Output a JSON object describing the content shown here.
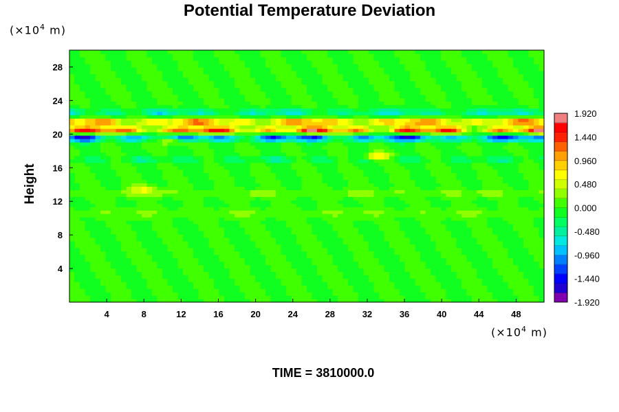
{
  "chart_data": {
    "type": "heatmap",
    "title": "Potential Temperature Deviation",
    "ylabel": "Height",
    "y_unit_prefix": "(×10",
    "y_unit_exp": "4",
    "y_unit_suffix": " m)",
    "x_unit_prefix": "(×10",
    "x_unit_exp": "4",
    "x_unit_suffix": " m)",
    "xlim": [
      0,
      51
    ],
    "ylim": [
      0,
      30
    ],
    "x_ticks": [
      4,
      8,
      12,
      16,
      20,
      24,
      28,
      32,
      36,
      40,
      44,
      48
    ],
    "y_ticks": [
      4,
      8,
      12,
      16,
      20,
      24,
      28
    ],
    "colorbar": {
      "labels": [
        "1.920",
        "1.440",
        "0.960",
        "0.480",
        "0.000",
        "-0.480",
        "-0.960",
        "-1.440",
        "-1.920"
      ],
      "min": -1.92,
      "max": 1.92,
      "colors": [
        "#8000b0",
        "#2000d0",
        "#0000ff",
        "#0040ff",
        "#0080ff",
        "#00c0ff",
        "#00e8e0",
        "#00f0a0",
        "#00ff60",
        "#10ff20",
        "#40ff00",
        "#90ff00",
        "#d0ff00",
        "#ffff00",
        "#ffd000",
        "#ffa000",
        "#ff6000",
        "#ff2000",
        "#ff0000",
        "#f08080"
      ]
    },
    "field_features": [
      {
        "kind": "band",
        "y": 20.5,
        "amplitude": 1.9
      },
      {
        "kind": "band",
        "y": 21.5,
        "amplitude": 1.5
      },
      {
        "kind": "band",
        "y": 19.6,
        "amplitude": -1.7
      },
      {
        "kind": "band",
        "y": 22.6,
        "amplitude": -0.8
      },
      {
        "kind": "band",
        "y": 17.0,
        "amplitude": -0.4
      },
      {
        "kind": "band",
        "y": 13.0,
        "amplitude": 0.35
      },
      {
        "kind": "band",
        "y": 10.6,
        "amplitude": 0.3
      },
      {
        "kind": "blob",
        "x": 33,
        "y": 17.3,
        "amplitude": 1.0
      },
      {
        "kind": "blob",
        "x": 11,
        "y": 19.4,
        "amplitude": 1.2
      },
      {
        "kind": "blob",
        "x": 8,
        "y": 13.5,
        "amplitude": 0.55
      }
    ]
  },
  "footer": {
    "time_label": "TIME = 3810000.0"
  }
}
